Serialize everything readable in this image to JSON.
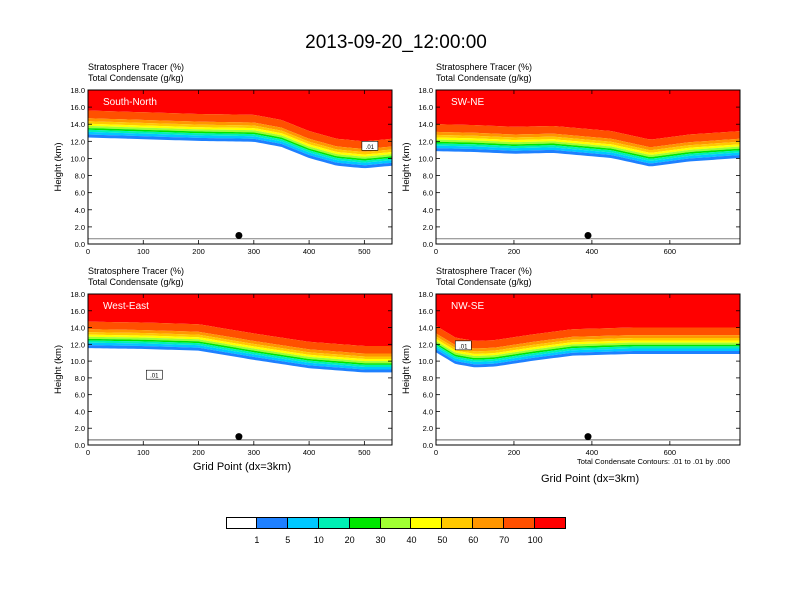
{
  "title": "2013-09-20_12:00:00",
  "field_labels": {
    "line1": "Stratosphere Tracer   (%)",
    "line2": "Total Condensate   (g/kg)"
  },
  "y_axis_label": "Height (km)",
  "x_axis_label": "Grid Point (dx=3km)",
  "contour_note": "Total Condensate Contours: .01 to .01 by .000",
  "colorbar": {
    "colors": [
      "#ffffff",
      "#1e80ff",
      "#00c8ff",
      "#00f0b4",
      "#00e600",
      "#a0ff32",
      "#ffff00",
      "#ffc800",
      "#ff9600",
      "#ff5000",
      "#ff0000"
    ],
    "labels": [
      "1",
      "5",
      "10",
      "20",
      "30",
      "40",
      "50",
      "60",
      "70",
      "100"
    ]
  },
  "chart_data": [
    {
      "type": "heatmap",
      "name": "South-North",
      "xlim": [
        0,
        550
      ],
      "xticks": [
        0,
        100,
        200,
        300,
        400,
        500
      ],
      "ylim": [
        0,
        18
      ],
      "yticks": [
        "0.0",
        "2.0",
        "4.0",
        "6.0",
        "8.0",
        "10.0",
        "12.0",
        "14.0",
        "16.0",
        "18.0"
      ],
      "tracer_base_km": [
        [
          0,
          15.6
        ],
        [
          100,
          15.4
        ],
        [
          200,
          15.2
        ],
        [
          300,
          15.1
        ],
        [
          350,
          14.5
        ],
        [
          400,
          13.2
        ],
        [
          450,
          12.3
        ],
        [
          500,
          12.0
        ],
        [
          550,
          12.3
        ]
      ],
      "contour_label": ".01",
      "marker_x": 273
    },
    {
      "type": "heatmap",
      "name": "SW-NE",
      "xlim": [
        0,
        780
      ],
      "xticks": [
        0,
        200,
        400,
        600
      ],
      "ylim": [
        0,
        18
      ],
      "yticks": [
        "0.0",
        "2.0",
        "4.0",
        "6.0",
        "8.0",
        "10.0",
        "12.0",
        "14.0",
        "16.0",
        "18.0"
      ],
      "tracer_base_km": [
        [
          0,
          14.0
        ],
        [
          100,
          13.9
        ],
        [
          200,
          13.7
        ],
        [
          300,
          13.8
        ],
        [
          450,
          13.2
        ],
        [
          550,
          12.2
        ],
        [
          650,
          12.8
        ],
        [
          780,
          13.2
        ]
      ],
      "contour_label": "",
      "marker_x": 390
    },
    {
      "type": "heatmap",
      "name": "West-East",
      "xlim": [
        0,
        550
      ],
      "xticks": [
        0,
        100,
        200,
        300,
        400,
        500
      ],
      "ylim": [
        0,
        18
      ],
      "yticks": [
        "0.0",
        "2.0",
        "4.0",
        "6.0",
        "8.0",
        "10.0",
        "12.0",
        "14.0",
        "16.0",
        "18.0"
      ],
      "tracer_base_km": [
        [
          0,
          14.7
        ],
        [
          100,
          14.6
        ],
        [
          200,
          14.4
        ],
        [
          300,
          13.3
        ],
        [
          400,
          12.3
        ],
        [
          500,
          11.8
        ],
        [
          550,
          11.8
        ]
      ],
      "contour_label": ".01",
      "marker_x": 273
    },
    {
      "type": "heatmap",
      "name": "NW-SE",
      "xlim": [
        0,
        780
      ],
      "xticks": [
        0,
        200,
        400,
        600
      ],
      "ylim": [
        0,
        18
      ],
      "yticks": [
        "0.0",
        "2.0",
        "4.0",
        "6.0",
        "8.0",
        "10.0",
        "12.0",
        "14.0",
        "16.0",
        "18.0"
      ],
      "tracer_base_km": [
        [
          0,
          14.2
        ],
        [
          50,
          12.8
        ],
        [
          100,
          12.4
        ],
        [
          150,
          12.5
        ],
        [
          250,
          13.2
        ],
        [
          350,
          13.8
        ],
        [
          500,
          14.0
        ],
        [
          780,
          14.0
        ]
      ],
      "contour_label": ".01",
      "marker_x": 390
    }
  ]
}
